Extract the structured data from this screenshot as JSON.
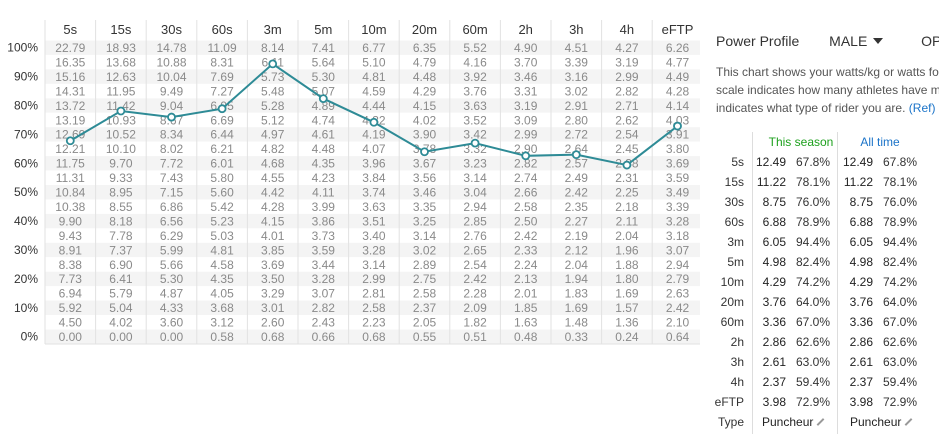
{
  "chart_data": {
    "type": "table",
    "columns": [
      "5s",
      "15s",
      "30s",
      "60s",
      "3m",
      "5m",
      "10m",
      "20m",
      "60m",
      "2h",
      "3h",
      "4h",
      "eFTP"
    ],
    "row_labels": [
      "100%",
      "",
      "90%",
      "",
      "80%",
      "",
      "70%",
      "",
      "60%",
      "",
      "50%",
      "",
      "40%",
      "",
      "30%",
      "",
      "20%",
      "",
      "10%",
      "",
      "0%"
    ],
    "rows": [
      [
        "22.79",
        "18.93",
        "14.78",
        "11.09",
        "8.14",
        "7.41",
        "6.77",
        "6.35",
        "5.52",
        "4.90",
        "4.51",
        "4.27",
        "6.26"
      ],
      [
        "16.35",
        "13.68",
        "10.88",
        "8.31",
        "6.11",
        "5.64",
        "5.10",
        "4.79",
        "4.16",
        "3.70",
        "3.39",
        "3.19",
        "4.77"
      ],
      [
        "15.16",
        "12.63",
        "10.04",
        "7.69",
        "5.73",
        "5.30",
        "4.81",
        "4.48",
        "3.92",
        "3.46",
        "3.16",
        "2.99",
        "4.49"
      ],
      [
        "14.31",
        "11.95",
        "9.49",
        "7.27",
        "5.48",
        "5.07",
        "4.59",
        "4.29",
        "3.76",
        "3.31",
        "3.02",
        "2.82",
        "4.28"
      ],
      [
        "13.72",
        "11.42",
        "9.04",
        "6.95",
        "5.28",
        "4.89",
        "4.44",
        "4.15",
        "3.63",
        "3.19",
        "2.91",
        "2.71",
        "4.14"
      ],
      [
        "13.19",
        "10.93",
        "8.67",
        "6.69",
        "5.12",
        "4.74",
        "4.32",
        "4.02",
        "3.52",
        "3.09",
        "2.80",
        "2.62",
        "4.03"
      ],
      [
        "12.69",
        "10.52",
        "8.34",
        "6.44",
        "4.97",
        "4.61",
        "4.19",
        "3.90",
        "3.42",
        "2.99",
        "2.72",
        "2.54",
        "3.91"
      ],
      [
        "12.21",
        "10.10",
        "8.02",
        "6.21",
        "4.82",
        "4.48",
        "4.07",
        "3.78",
        "3.32",
        "2.90",
        "2.64",
        "2.45",
        "3.80"
      ],
      [
        "11.75",
        "9.70",
        "7.72",
        "6.01",
        "4.68",
        "4.35",
        "3.96",
        "3.67",
        "3.23",
        "2.82",
        "2.57",
        "2.38",
        "3.69"
      ],
      [
        "11.31",
        "9.33",
        "7.43",
        "5.80",
        "4.55",
        "4.23",
        "3.84",
        "3.56",
        "3.14",
        "2.74",
        "2.49",
        "2.31",
        "3.59"
      ],
      [
        "10.84",
        "8.95",
        "7.15",
        "5.60",
        "4.42",
        "4.11",
        "3.74",
        "3.46",
        "3.04",
        "2.66",
        "2.42",
        "2.25",
        "3.49"
      ],
      [
        "10.38",
        "8.55",
        "6.86",
        "5.42",
        "4.28",
        "3.99",
        "3.63",
        "3.35",
        "2.94",
        "2.58",
        "2.35",
        "2.18",
        "3.39"
      ],
      [
        "9.90",
        "8.18",
        "6.56",
        "5.23",
        "4.15",
        "3.86",
        "3.51",
        "3.25",
        "2.85",
        "2.50",
        "2.27",
        "2.11",
        "3.28"
      ],
      [
        "9.43",
        "7.78",
        "6.29",
        "5.03",
        "4.01",
        "3.73",
        "3.40",
        "3.14",
        "2.76",
        "2.42",
        "2.19",
        "2.04",
        "3.18"
      ],
      [
        "8.91",
        "7.37",
        "5.99",
        "4.81",
        "3.85",
        "3.59",
        "3.28",
        "3.02",
        "2.65",
        "2.33",
        "2.12",
        "1.96",
        "3.07"
      ],
      [
        "8.38",
        "6.90",
        "5.66",
        "4.58",
        "3.69",
        "3.44",
        "3.14",
        "2.89",
        "2.54",
        "2.24",
        "2.04",
        "1.88",
        "2.94"
      ],
      [
        "7.73",
        "6.41",
        "5.30",
        "4.35",
        "3.50",
        "3.28",
        "2.99",
        "2.75",
        "2.42",
        "2.13",
        "1.94",
        "1.80",
        "2.79"
      ],
      [
        "6.94",
        "5.79",
        "4.87",
        "4.05",
        "3.29",
        "3.07",
        "2.81",
        "2.58",
        "2.28",
        "2.01",
        "1.83",
        "1.69",
        "2.63"
      ],
      [
        "5.92",
        "5.04",
        "4.33",
        "3.68",
        "3.01",
        "2.82",
        "2.58",
        "2.37",
        "2.09",
        "1.85",
        "1.69",
        "1.57",
        "2.42"
      ],
      [
        "4.50",
        "4.02",
        "3.60",
        "3.12",
        "2.60",
        "2.43",
        "2.23",
        "2.05",
        "1.82",
        "1.63",
        "1.48",
        "1.36",
        "2.10"
      ],
      [
        "0.00",
        "0.00",
        "0.00",
        "0.58",
        "0.68",
        "0.66",
        "0.68",
        "0.55",
        "0.51",
        "0.48",
        "0.33",
        "0.24",
        "0.64"
      ]
    ],
    "series": [
      {
        "values": [
          67.8,
          78.1,
          76.0,
          78.9,
          94.4,
          82.4,
          74.2,
          64.0,
          67.0,
          62.6,
          63.0,
          59.4,
          72.9
        ]
      }
    ],
    "ylim": [
      0,
      100
    ],
    "grid": true,
    "line_color": "#2e8b96"
  },
  "profile": {
    "title": "Power Profile",
    "sex": "MALE",
    "options_label": "OPTIONS",
    "description_lines": [
      "This chart shows your watts/kg or watts for",
      "scale indicates how many athletes have ma",
      "indicates what type of rider you are."
    ],
    "ref_link": "(Ref)",
    "season_header": "This season",
    "all_header": "All time",
    "season_color": "#1ea11e",
    "all_color": "#1a73c8",
    "stats": [
      {
        "label": "5s",
        "s_val": "12.49",
        "s_pct": "67.8%",
        "a_val": "12.49",
        "a_pct": "67.8%"
      },
      {
        "label": "15s",
        "s_val": "11.22",
        "s_pct": "78.1%",
        "a_val": "11.22",
        "a_pct": "78.1%"
      },
      {
        "label": "30s",
        "s_val": "8.75",
        "s_pct": "76.0%",
        "a_val": "8.75",
        "a_pct": "76.0%"
      },
      {
        "label": "60s",
        "s_val": "6.88",
        "s_pct": "78.9%",
        "a_val": "6.88",
        "a_pct": "78.9%"
      },
      {
        "label": "3m",
        "s_val": "6.05",
        "s_pct": "94.4%",
        "a_val": "6.05",
        "a_pct": "94.4%"
      },
      {
        "label": "5m",
        "s_val": "4.98",
        "s_pct": "82.4%",
        "a_val": "4.98",
        "a_pct": "82.4%"
      },
      {
        "label": "10m",
        "s_val": "4.29",
        "s_pct": "74.2%",
        "a_val": "4.29",
        "a_pct": "74.2%"
      },
      {
        "label": "20m",
        "s_val": "3.76",
        "s_pct": "64.0%",
        "a_val": "3.76",
        "a_pct": "64.0%"
      },
      {
        "label": "60m",
        "s_val": "3.36",
        "s_pct": "67.0%",
        "a_val": "3.36",
        "a_pct": "67.0%"
      },
      {
        "label": "2h",
        "s_val": "2.86",
        "s_pct": "62.6%",
        "a_val": "2.86",
        "a_pct": "62.6%"
      },
      {
        "label": "3h",
        "s_val": "2.61",
        "s_pct": "63.0%",
        "a_val": "2.61",
        "a_pct": "63.0%"
      },
      {
        "label": "4h",
        "s_val": "2.37",
        "s_pct": "59.4%",
        "a_val": "2.37",
        "a_pct": "59.4%"
      },
      {
        "label": "eFTP",
        "s_val": "3.98",
        "s_pct": "72.9%",
        "a_val": "3.98",
        "a_pct": "72.9%"
      }
    ],
    "type_label": "Type",
    "season_type": "Puncheur",
    "all_type": "Puncheur"
  }
}
